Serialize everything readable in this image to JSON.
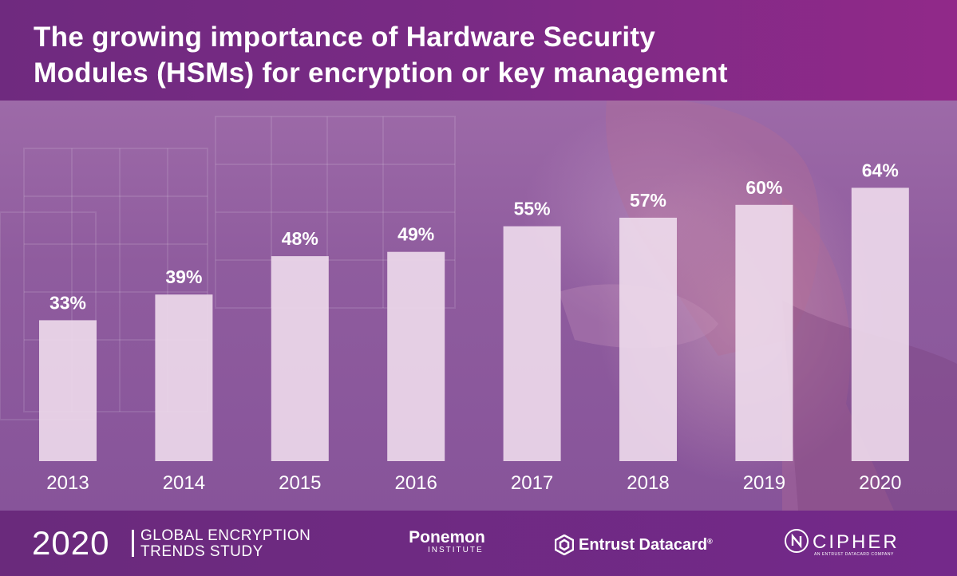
{
  "title": {
    "line1": "The growing importance of Hardware Security",
    "line2": "Modules (HSMs) for encryption or key management"
  },
  "chart_data": {
    "type": "bar",
    "categories": [
      "2013",
      "2014",
      "2015",
      "2016",
      "2017",
      "2018",
      "2019",
      "2020"
    ],
    "values": [
      33,
      39,
      48,
      49,
      55,
      57,
      60,
      64
    ],
    "value_labels": [
      "33%",
      "39%",
      "48%",
      "49%",
      "55%",
      "57%",
      "60%",
      "64%"
    ],
    "unit": "%",
    "ylim": [
      0,
      68
    ],
    "grid": false,
    "legend": "none",
    "bar_color": "#eedcec",
    "bar_opacity": 0.9
  },
  "footer": {
    "study_year": "2020",
    "study_line1": "GLOBAL ENCRYPTION",
    "study_line2": "TRENDS STUDY",
    "ponemon_name": "Ponemon",
    "ponemon_sub": "INSTITUTE",
    "entrust": "Entrust Datacard",
    "entrust_mark": "®",
    "cipher": "CIPHER",
    "cipher_sub": "AN ENTRUST DATACARD COMPANY"
  },
  "colors": {
    "header_start": "#6f2a7f",
    "header_end": "#912989",
    "footer": "#6e2a7f",
    "text": "#ffffff"
  }
}
